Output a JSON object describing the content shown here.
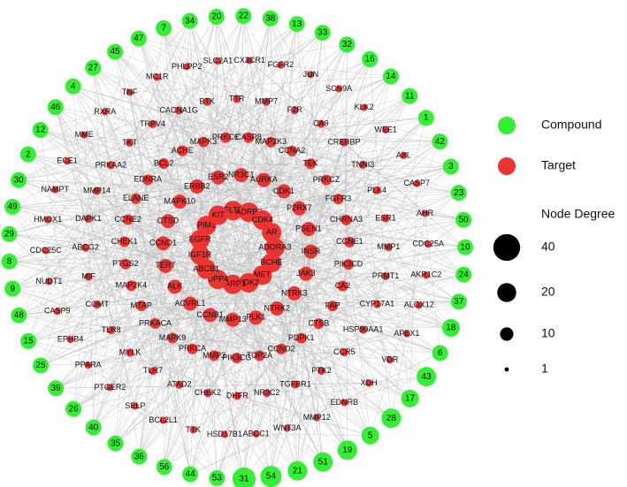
{
  "legend": {
    "compound": "Compound",
    "target": "Target",
    "degree_title": "Node Degree",
    "degrees": [
      40,
      20,
      10,
      1
    ]
  },
  "compounds": [
    "20",
    "22",
    "38",
    "13",
    "33",
    "32",
    "16",
    "14",
    "11",
    "1",
    "42",
    "3",
    "23",
    "50",
    "10",
    "24",
    "37",
    "18",
    "6",
    "43",
    "17",
    "28",
    "5",
    "19",
    "51",
    "21",
    "54",
    "31",
    "53",
    "44",
    "56",
    "36",
    "35",
    "40",
    "26",
    "39",
    "25",
    "15",
    "48",
    "9",
    "8",
    "29",
    "49",
    "30",
    "2",
    "12",
    "46",
    "4",
    "27",
    "45",
    "47",
    "7",
    "34"
  ],
  "targets": [
    "SLC2A1",
    "CX3CR1",
    "FGFR2",
    "JUN",
    "SCN9A",
    "KLK2",
    "WEE1",
    "AXL",
    "CASP7",
    "AHR",
    "CDC25A",
    "AKR1C2",
    "ALOX12",
    "APEX1",
    "VDR",
    "XDH",
    "EDNRB",
    "MMP12",
    "WNT3A",
    "ABCC1",
    "HSD17B1",
    "TTK",
    "BCL2L1",
    "SELP",
    "PTGER2",
    "PPARA",
    "EPHB4",
    "CASP9",
    "NUDT1",
    "CDC25C",
    "HMOX1",
    "NAMPT",
    "ECE1",
    "MME",
    "RXRA",
    "TNF",
    "MC1R",
    "PHLPP2",
    "TTR",
    "MMP7",
    "F2R",
    "CA9",
    "CREBBP",
    "TNNI3",
    "PLK4",
    "ESR1",
    "MMP1",
    "PRMT1",
    "CYP17A1",
    "HSP90AA1",
    "CCR5",
    "PTK2",
    "TGFBR1",
    "NR3C2",
    "DHFR",
    "CHEK2",
    "ATAD2",
    "TLR7",
    "MYLK",
    "TLR8",
    "COMT",
    "MIF",
    "ABCG2",
    "DAPK1",
    "MMP14",
    "PRKAA2",
    "TKT",
    "TRPV4",
    "CACNA1G",
    "BTK",
    "PRKCE",
    "CASP8",
    "MAP2K3",
    "CCNA2",
    "TEK",
    "PRKCZ",
    "FGFR3",
    "CHRNA3",
    "CCNE1",
    "PIK3CD",
    "CA2",
    "FAP",
    "CTSB",
    "PDPK1",
    "CCND2",
    "TOP2A",
    "PIK3CG",
    "MMP3",
    "PRKCA",
    "MAPK9",
    "PRKACA",
    "MTAP",
    "MAP2K4",
    "PTGS2",
    "CHEK1",
    "CCNE2",
    "ELANE",
    "EDNRA",
    "BCL2",
    "ACHE",
    "MAPK3",
    "NR3C1",
    "AURKA",
    "CDK1",
    "P2RX7",
    "PSEN1",
    "INSR",
    "JAK3",
    "NTRK3",
    "NTRK2",
    "PLK1",
    "MMP13",
    "CCNB1",
    "ACVRL1",
    "ALK",
    "TERT",
    "CCND1",
    "CTSD",
    "MAPK10",
    "ERBB2",
    "ESR2",
    "FLT3",
    "ADRB2",
    "CDK4",
    "AR",
    "ADORA3",
    "BCHE",
    "MET",
    "CDK2",
    "PARP1",
    "DPP4",
    "ABCB1",
    "IGF1R",
    "EGFR",
    "PIM1",
    "KIT"
  ]
}
